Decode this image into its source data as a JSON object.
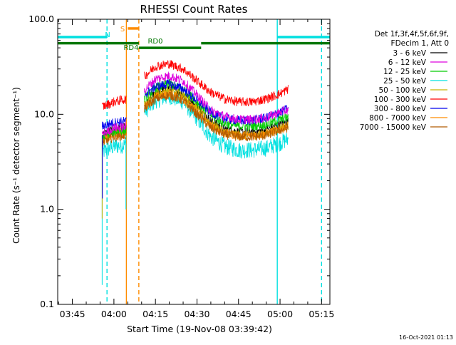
{
  "chart_data": {
    "type": "line",
    "title": "RHESSI Count Rates",
    "xlabel": "Start Time (19-Nov-08 03:39:42)",
    "ylabel": "Count Rate (s⁻¹ detector segment⁻¹)",
    "yscale": "log",
    "ylim": [
      0.1,
      100.0
    ],
    "xlim": [
      "03:39:42",
      "05:18:00"
    ],
    "x_tick_labels": [
      "03:45",
      "04:00",
      "04:15",
      "04:30",
      "04:45",
      "05:00",
      "05:15"
    ],
    "y_tick_labels": [
      "0.1",
      "1.0",
      "10.0",
      "100.0"
    ],
    "grid": false,
    "legend_placement": "right",
    "legend_header": [
      "Det 1f,3f,4f,5f,6f,9f,",
      "FDecim 1, Att 0"
    ],
    "timestamp": "16-Oct-2021 01:13",
    "data_gaps": [
      [
        "03:39:42",
        "03:55:45"
      ],
      [
        "04:04:30",
        "04:11:00"
      ]
    ],
    "series": [
      {
        "name": "3 - 6 keV",
        "color": "#000000",
        "values": [
          [
            "03:55:45",
            6.0
          ],
          [
            "04:00:00",
            7.0
          ],
          [
            "04:04:30",
            7.2
          ],
          [
            "04:11:00",
            11.5
          ],
          [
            "04:15:00",
            17.0
          ],
          [
            "04:20:00",
            19.0
          ],
          [
            "04:25:00",
            16.5
          ],
          [
            "04:30:00",
            12.0
          ],
          [
            "04:35:00",
            8.5
          ],
          [
            "04:40:00",
            7.0
          ],
          [
            "04:45:00",
            6.5
          ],
          [
            "04:50:00",
            6.5
          ],
          [
            "04:55:00",
            6.8
          ],
          [
            "05:00:00",
            7.8
          ],
          [
            "05:03:00",
            8.3
          ]
        ]
      },
      {
        "name": "6 - 12 keV",
        "color": "#dd00dd",
        "values": [
          [
            "03:55:45",
            6.2
          ],
          [
            "04:00:00",
            7.2
          ],
          [
            "04:04:30",
            7.4
          ],
          [
            "04:11:00",
            18.0
          ],
          [
            "04:15:00",
            23.5
          ],
          [
            "04:20:00",
            25.5
          ],
          [
            "04:25:00",
            22.5
          ],
          [
            "04:30:00",
            16.0
          ],
          [
            "04:35:00",
            11.0
          ],
          [
            "04:40:00",
            9.5
          ],
          [
            "04:45:00",
            8.8
          ],
          [
            "04:50:00",
            8.8
          ],
          [
            "04:55:00",
            9.2
          ],
          [
            "05:00:00",
            10.5
          ],
          [
            "05:03:00",
            11.2
          ]
        ]
      },
      {
        "name": "12 - 25 keV",
        "color": "#00cc00",
        "values": [
          [
            "03:55:45",
            5.8
          ],
          [
            "04:00:00",
            6.6
          ],
          [
            "04:04:30",
            6.8
          ],
          [
            "04:11:00",
            14.5
          ],
          [
            "04:15:00",
            19.0
          ],
          [
            "04:20:00",
            21.0
          ],
          [
            "04:25:00",
            18.5
          ],
          [
            "04:30:00",
            13.5
          ],
          [
            "04:35:00",
            9.8
          ],
          [
            "04:40:00",
            8.0
          ],
          [
            "04:45:00",
            7.5
          ],
          [
            "04:50:00",
            7.5
          ],
          [
            "04:55:00",
            7.8
          ],
          [
            "05:00:00",
            8.8
          ],
          [
            "05:03:00",
            9.3
          ]
        ]
      },
      {
        "name": "25 - 50 keV",
        "color": "#00e0e0",
        "values": [
          [
            "03:55:45",
            4.0
          ],
          [
            "04:00:00",
            4.6
          ],
          [
            "04:04:30",
            4.8
          ],
          [
            "04:11:00",
            10.5
          ],
          [
            "04:15:00",
            14.0
          ],
          [
            "04:20:00",
            15.5
          ],
          [
            "04:25:00",
            13.5
          ],
          [
            "04:30:00",
            9.0
          ],
          [
            "04:35:00",
            5.8
          ],
          [
            "04:40:00",
            4.6
          ],
          [
            "04:45:00",
            4.2
          ],
          [
            "04:50:00",
            4.2
          ],
          [
            "04:55:00",
            4.4
          ],
          [
            "05:00:00",
            5.0
          ],
          [
            "05:03:00",
            5.5
          ]
        ]
      },
      {
        "name": "50 - 100 keV",
        "color": "#c8b400",
        "values": [
          [
            "03:55:45",
            5.5
          ],
          [
            "04:00:00",
            6.3
          ],
          [
            "04:04:30",
            6.5
          ],
          [
            "04:11:00",
            12.5
          ],
          [
            "04:15:00",
            16.5
          ],
          [
            "04:20:00",
            18.0
          ],
          [
            "04:25:00",
            16.0
          ],
          [
            "04:30:00",
            11.5
          ],
          [
            "04:35:00",
            8.0
          ],
          [
            "04:40:00",
            6.5
          ],
          [
            "04:45:00",
            6.0
          ],
          [
            "04:50:00",
            6.0
          ],
          [
            "04:55:00",
            6.3
          ],
          [
            "05:00:00",
            7.2
          ],
          [
            "05:03:00",
            7.6
          ]
        ]
      },
      {
        "name": "100 - 300 keV",
        "color": "#ff0000",
        "values": [
          [
            "03:55:45",
            12.0
          ],
          [
            "04:00:00",
            13.5
          ],
          [
            "04:04:30",
            14.5
          ],
          [
            "04:11:00",
            25.0
          ],
          [
            "04:15:00",
            32.0
          ],
          [
            "04:20:00",
            34.0
          ],
          [
            "04:25:00",
            30.0
          ],
          [
            "04:30:00",
            22.5
          ],
          [
            "04:35:00",
            17.0
          ],
          [
            "04:40:00",
            14.5
          ],
          [
            "04:45:00",
            13.5
          ],
          [
            "04:50:00",
            13.5
          ],
          [
            "04:55:00",
            14.5
          ],
          [
            "05:00:00",
            16.5
          ],
          [
            "05:03:00",
            18.5
          ]
        ]
      },
      {
        "name": "300 - 800 keV",
        "color": "#0000ee",
        "values": [
          [
            "03:55:45",
            7.5
          ],
          [
            "04:00:00",
            8.2
          ],
          [
            "04:04:30",
            8.5
          ],
          [
            "04:11:00",
            16.0
          ],
          [
            "04:15:00",
            19.5
          ],
          [
            "04:20:00",
            21.0
          ],
          [
            "04:25:00",
            18.5
          ],
          [
            "04:30:00",
            14.0
          ],
          [
            "04:35:00",
            10.5
          ],
          [
            "04:40:00",
            9.0
          ],
          [
            "04:45:00",
            8.6
          ],
          [
            "04:50:00",
            8.6
          ],
          [
            "04:55:00",
            9.2
          ],
          [
            "05:00:00",
            10.5
          ],
          [
            "05:03:00",
            11.5
          ]
        ]
      },
      {
        "name": "800 - 7000 keV",
        "color": "#ff8c00",
        "values": [
          [
            "03:55:45",
            5.3
          ],
          [
            "04:00:00",
            6.0
          ],
          [
            "04:04:30",
            6.2
          ],
          [
            "04:11:00",
            12.0
          ],
          [
            "04:15:00",
            15.0
          ],
          [
            "04:20:00",
            16.5
          ],
          [
            "04:25:00",
            14.5
          ],
          [
            "04:30:00",
            10.5
          ],
          [
            "04:35:00",
            7.5
          ],
          [
            "04:40:00",
            6.3
          ],
          [
            "04:45:00",
            6.0
          ],
          [
            "04:50:00",
            6.0
          ],
          [
            "04:55:00",
            6.2
          ],
          [
            "05:00:00",
            7.0
          ],
          [
            "05:03:00",
            7.5
          ]
        ]
      },
      {
        "name": "7000 - 15000 keV",
        "color": "#b05a00",
        "values": [
          [
            "03:55:45",
            5.0
          ],
          [
            "04:00:00",
            5.8
          ],
          [
            "04:04:30",
            6.0
          ],
          [
            "04:11:00",
            11.5
          ],
          [
            "04:15:00",
            14.5
          ],
          [
            "04:20:00",
            16.0
          ],
          [
            "04:25:00",
            14.0
          ],
          [
            "04:30:00",
            10.0
          ],
          [
            "04:35:00",
            7.2
          ],
          [
            "04:40:00",
            6.1
          ],
          [
            "04:45:00",
            5.8
          ],
          [
            "04:50:00",
            5.8
          ],
          [
            "04:55:00",
            6.0
          ],
          [
            "05:00:00",
            6.8
          ],
          [
            "05:03:00",
            7.2
          ]
        ]
      }
    ],
    "annotations": [
      {
        "label": "N",
        "color": "#00e0e0",
        "level": 65,
        "start": "03:39:42",
        "end": "03:57:30",
        "style": "bar"
      },
      {
        "label": "N",
        "color": "#00e0e0",
        "level": 65,
        "start": "04:59:00",
        "end": "05:18:00",
        "style": "bar"
      },
      {
        "label": "S",
        "color": "#ff8c00",
        "level": 80,
        "start": "04:05:00",
        "end": "04:09:00",
        "style": "bar"
      },
      {
        "label": "RD4",
        "color": "#007700",
        "level": 56,
        "start": "03:39:42",
        "end": "04:09:00",
        "style": "bar"
      },
      {
        "label": "RD0",
        "color": "#007700",
        "level": 50,
        "start": "04:09:00",
        "end": "04:31:30",
        "style": "bar"
      },
      {
        "label": "",
        "color": "#007700",
        "level": 56,
        "start": "04:31:30",
        "end": "05:18:00",
        "style": "bar"
      }
    ],
    "event_lines": [
      {
        "time": "03:57:30",
        "color": "#00e0e0",
        "dashed": true
      },
      {
        "time": "04:04:30",
        "color": "#ff8c00",
        "dashed": false
      },
      {
        "time": "04:09:00",
        "color": "#ff8c00",
        "dashed": true
      },
      {
        "time": "04:59:00",
        "color": "#00e0e0",
        "dashed": false
      },
      {
        "time": "05:15:00",
        "color": "#00e0e0",
        "dashed": true
      }
    ]
  }
}
